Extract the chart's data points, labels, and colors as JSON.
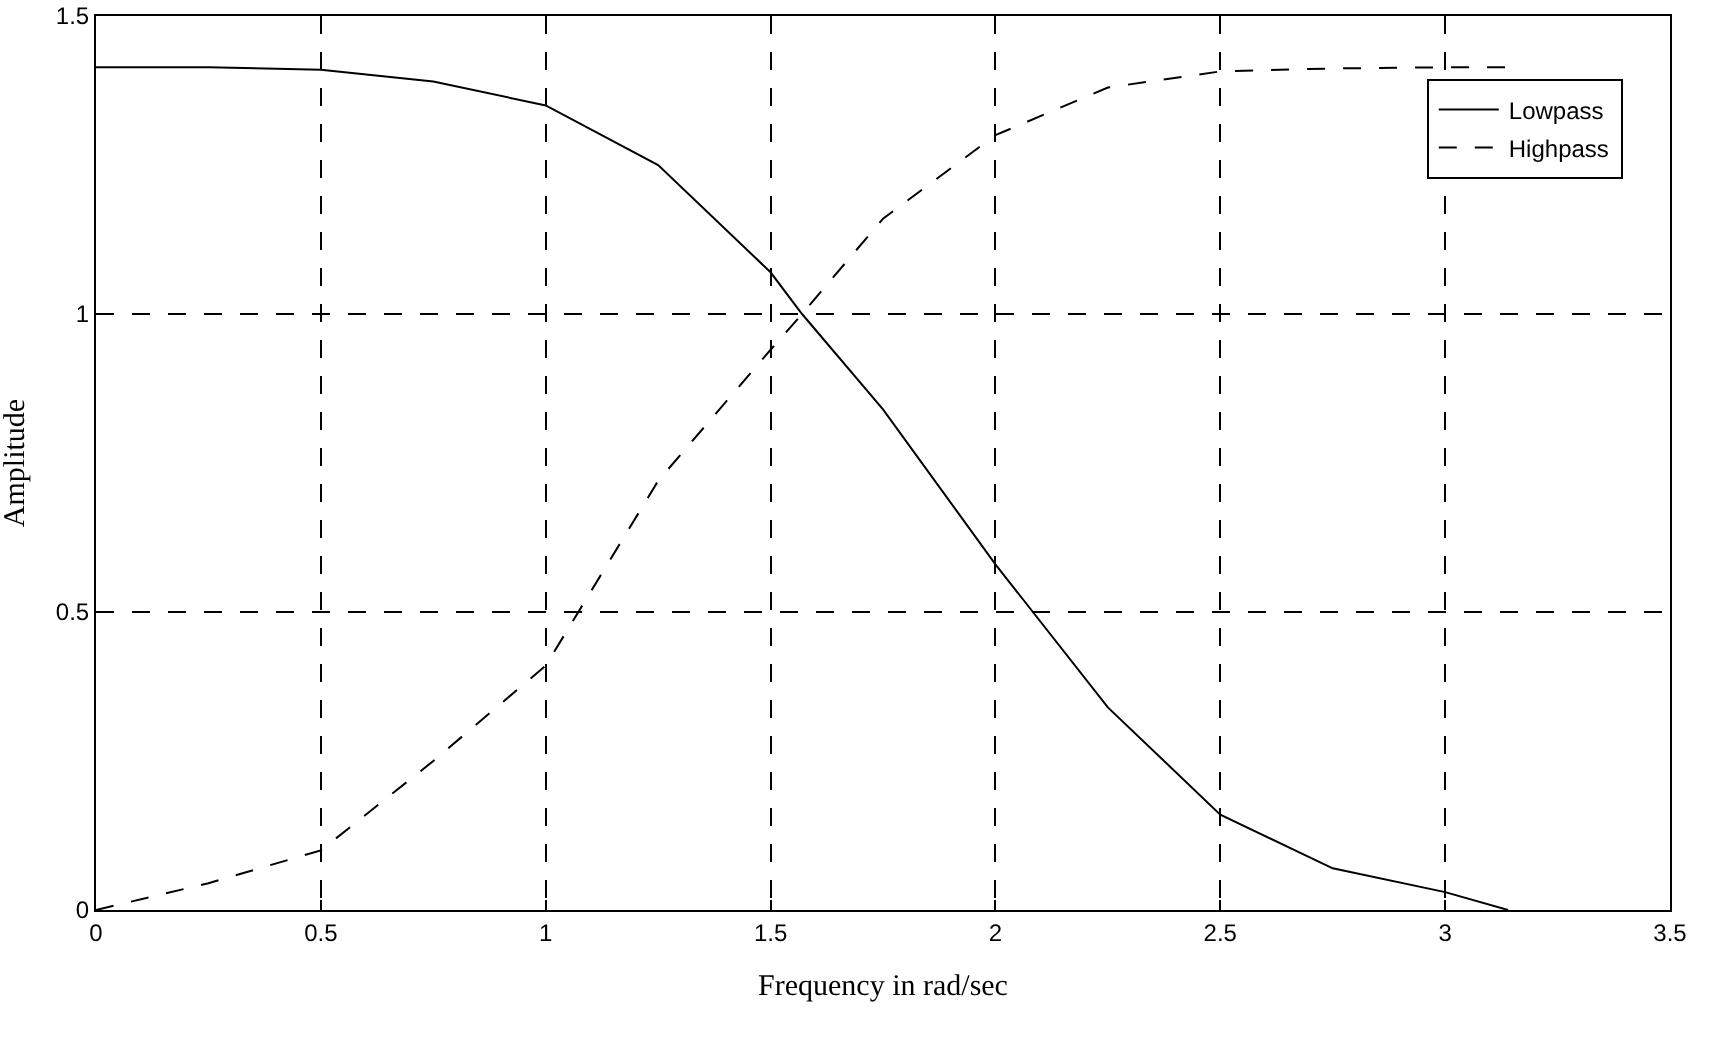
{
  "chart_data": {
    "type": "line",
    "xlabel": "Frequency in rad/sec",
    "ylabel": "Amplitude",
    "xlim": [
      0,
      3.5
    ],
    "ylim": [
      0,
      1.5
    ],
    "xticks": [
      0,
      0.5,
      1,
      1.5,
      2,
      2.5,
      3,
      3.5
    ],
    "yticks": [
      0,
      0.5,
      1,
      1.5
    ],
    "grid": true,
    "legend": "top right",
    "series": [
      {
        "name": "Lowpass",
        "color": "#000000",
        "line_style": "solid",
        "x": [
          0,
          0.25,
          0.5,
          0.75,
          1,
          1.25,
          1.5,
          1.57,
          1.75,
          2,
          2.25,
          2.5,
          2.75,
          3,
          3.14
        ],
        "values": [
          1.414,
          1.414,
          1.41,
          1.39,
          1.35,
          1.25,
          1.07,
          1.0,
          0.84,
          0.58,
          0.34,
          0.16,
          0.07,
          0.03,
          0
        ]
      },
      {
        "name": "Highpass",
        "color": "#000000",
        "line_style": "dashed",
        "x": [
          0,
          0.25,
          0.5,
          0.75,
          1,
          1.25,
          1.5,
          1.57,
          1.75,
          2,
          2.25,
          2.5,
          2.75,
          3,
          3.14
        ],
        "values": [
          0,
          0.045,
          0.1,
          0.25,
          0.41,
          0.72,
          0.94,
          1.0,
          1.16,
          1.3,
          1.38,
          1.407,
          1.412,
          1.414,
          1.414
        ]
      }
    ]
  }
}
